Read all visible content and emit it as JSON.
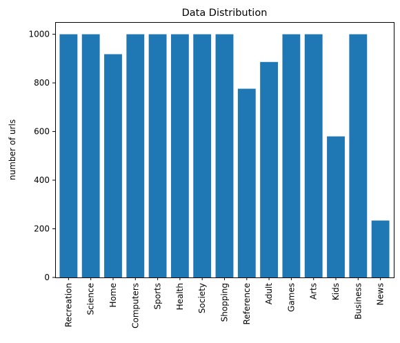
{
  "chart_data": {
    "type": "bar",
    "title": "Data Distribution",
    "xlabel": "",
    "ylabel": "number of urls",
    "ylim": [
      0,
      1050
    ],
    "yticks": [
      0,
      200,
      400,
      600,
      800,
      1000
    ],
    "categories": [
      "Recreation",
      "Science",
      "Home",
      "Computers",
      "Sports",
      "Health",
      "Society",
      "Shopping",
      "Reference",
      "Adult",
      "Games",
      "Arts",
      "Kids",
      "Business",
      "News"
    ],
    "values": [
      1000,
      1000,
      918,
      1000,
      1000,
      1000,
      1000,
      1000,
      776,
      886,
      1000,
      1000,
      580,
      1000,
      234
    ],
    "bar_color": "#1f77b4",
    "grid": false,
    "legend": "none"
  }
}
